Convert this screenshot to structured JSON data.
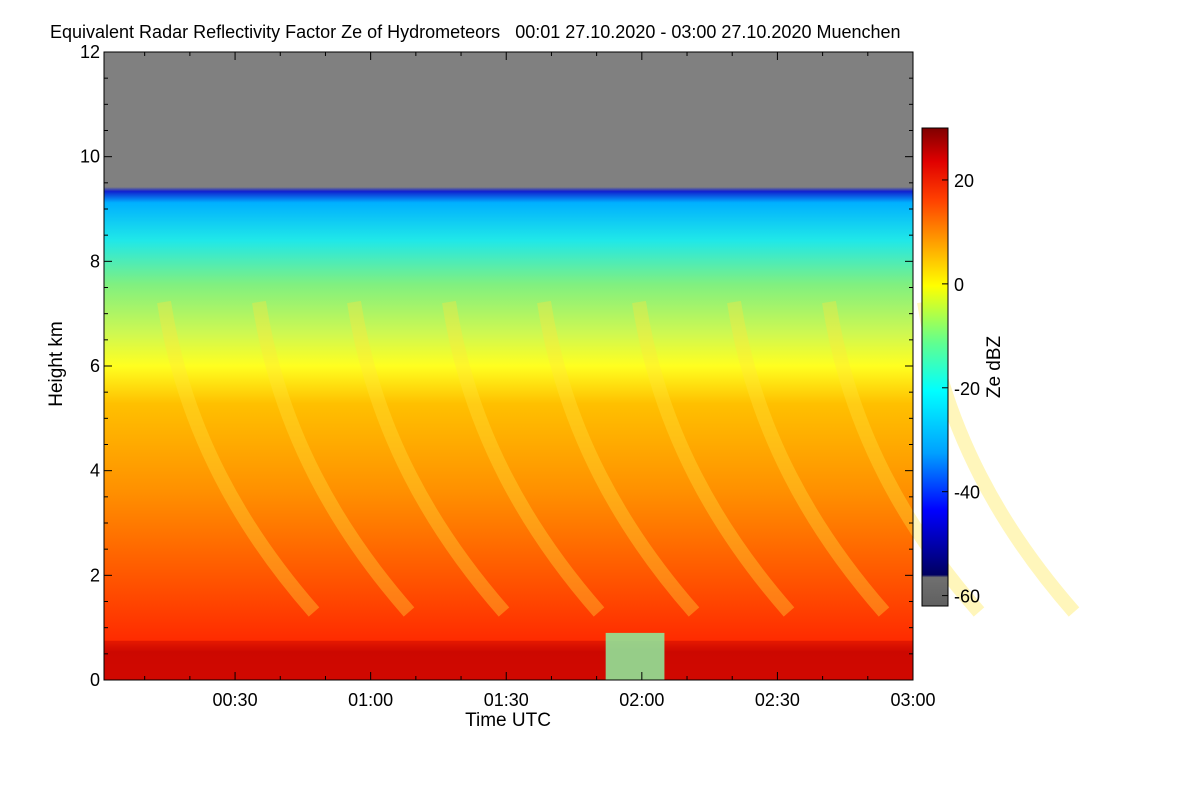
{
  "chart_data": {
    "type": "heatmap",
    "title": "Equivalent Radar Reflectivity Factor Ze of Hydrometeors",
    "time_range": "00:01 27.10.2020 - 03:00 27.10.2020",
    "location": "Muenchen",
    "xlabel": "Time UTC",
    "ylabel": "Height km",
    "x_ticks": [
      "00:30",
      "01:00",
      "01:30",
      "02:00",
      "02:30",
      "03:00"
    ],
    "x_tick_minutes": [
      30,
      60,
      90,
      120,
      150,
      180
    ],
    "xlim_minutes": [
      1,
      180
    ],
    "y_ticks": [
      0,
      2,
      4,
      6,
      8,
      10,
      12
    ],
    "ylim": [
      0,
      12
    ],
    "colorbar": {
      "label": "Ze dBZ",
      "ticks": [
        20,
        0,
        -20,
        -40,
        -60
      ],
      "range": [
        -62,
        30
      ]
    },
    "cloud_top_km": 9.3,
    "colors": {
      "no_signal": "#808080",
      "scale": [
        "#5a5a5a",
        "#000090",
        "#0020ff",
        "#00b0ff",
        "#00ffff",
        "#40ffc0",
        "#a0ff40",
        "#ffff00",
        "#ffb000",
        "#ff6000",
        "#ff2000",
        "#c00000",
        "#800000"
      ]
    }
  }
}
